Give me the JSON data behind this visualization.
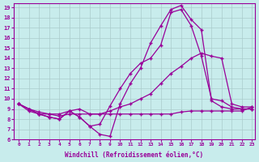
{
  "xlabel": "Windchill (Refroidissement éolien,°C)",
  "background_color": "#c8ecec",
  "line_color": "#990099",
  "xlim": [
    -0.5,
    23.3
  ],
  "ylim": [
    6,
    19.4
  ],
  "xticks": [
    0,
    1,
    2,
    3,
    4,
    5,
    6,
    7,
    8,
    9,
    10,
    11,
    12,
    13,
    14,
    15,
    16,
    17,
    18,
    19,
    20,
    21,
    22,
    23
  ],
  "yticks": [
    6,
    7,
    8,
    9,
    10,
    11,
    12,
    13,
    14,
    15,
    16,
    17,
    18,
    19
  ],
  "line1_x": [
    0,
    1,
    2,
    3,
    4,
    5,
    6,
    7,
    8,
    9,
    10,
    11,
    12,
    13,
    14,
    15,
    16,
    17,
    18,
    19,
    20,
    21,
    22,
    23
  ],
  "line1_y": [
    9.5,
    9.0,
    8.5,
    8.2,
    8.0,
    8.8,
    8.2,
    7.3,
    6.5,
    6.3,
    9.5,
    11.5,
    13.0,
    15.5,
    17.2,
    18.8,
    19.2,
    17.8,
    16.8,
    9.8,
    9.2,
    9.0,
    9.0,
    9.0
  ],
  "line2_x": [
    0,
    1,
    2,
    3,
    4,
    5,
    6,
    7,
    8,
    9,
    10,
    11,
    12,
    13,
    14,
    15,
    16,
    17,
    18,
    19,
    20,
    21,
    22,
    23
  ],
  "line2_y": [
    9.5,
    9.0,
    8.5,
    8.2,
    8.0,
    8.8,
    8.2,
    7.3,
    7.5,
    9.3,
    11.0,
    12.5,
    13.5,
    14.0,
    15.3,
    18.5,
    18.8,
    17.2,
    14.2,
    10.0,
    9.8,
    9.2,
    9.0,
    9.0
  ],
  "line3_x": [
    0,
    1,
    2,
    3,
    4,
    5,
    6,
    7,
    8,
    9,
    10,
    11,
    12,
    13,
    14,
    15,
    16,
    17,
    18,
    19,
    20,
    21,
    22,
    23
  ],
  "line3_y": [
    9.5,
    9.0,
    8.7,
    8.5,
    8.5,
    8.8,
    9.0,
    8.5,
    8.5,
    8.8,
    9.2,
    9.5,
    10.0,
    10.5,
    11.5,
    12.5,
    13.2,
    14.0,
    14.5,
    14.2,
    14.0,
    9.5,
    9.2,
    9.2
  ],
  "line4_x": [
    0,
    1,
    2,
    3,
    4,
    5,
    6,
    7,
    8,
    9,
    10,
    11,
    12,
    13,
    14,
    15,
    16,
    17,
    18,
    19,
    20,
    21,
    22,
    23
  ],
  "line4_y": [
    9.5,
    8.8,
    8.5,
    8.5,
    8.3,
    8.5,
    8.5,
    8.5,
    8.5,
    8.5,
    8.5,
    8.5,
    8.5,
    8.5,
    8.5,
    8.5,
    8.7,
    8.8,
    8.8,
    8.8,
    8.8,
    8.8,
    8.8,
    9.2
  ]
}
